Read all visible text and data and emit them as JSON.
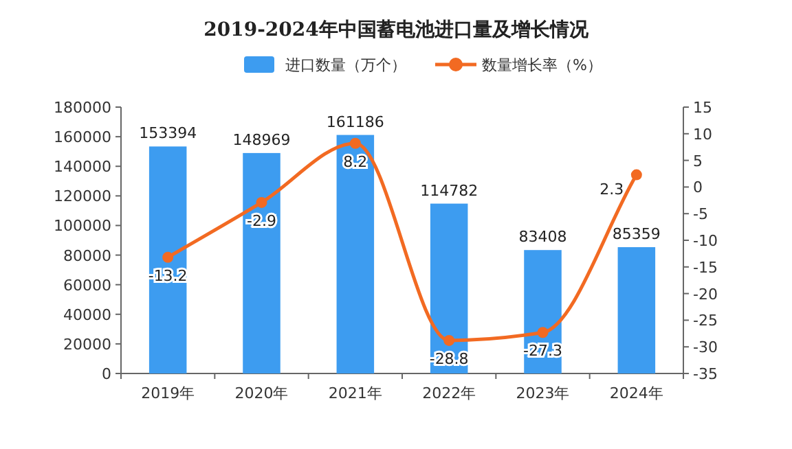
{
  "chart_data": {
    "type": "bar",
    "title": "2019-2024年中国蓄电池进口量及增长情况",
    "categories": [
      "2019年",
      "2020年",
      "2021年",
      "2022年",
      "2023年",
      "2024年"
    ],
    "series": [
      {
        "name": "进口数量（万个）",
        "color": "#3d9cf0",
        "values": [
          153394,
          148969,
          161186,
          114782,
          83408,
          85359
        ]
      },
      {
        "name": "数量增长率（%）",
        "type": "line",
        "axis": "y2",
        "color": "#f26a22",
        "marker": "circle",
        "values": [
          -13.2,
          -2.9,
          8.2,
          -28.8,
          -27.3,
          2.3
        ]
      }
    ],
    "ylim": [
      0,
      180000
    ],
    "yticks": [
      0,
      20000,
      40000,
      60000,
      80000,
      100000,
      120000,
      140000,
      160000,
      180000
    ],
    "y2lim": [
      -35,
      15
    ],
    "y2ticks": [
      -35,
      -30,
      -25,
      -20,
      -15,
      -10,
      -5,
      0,
      5,
      10,
      15
    ],
    "data_labels": true,
    "legend": "top"
  }
}
